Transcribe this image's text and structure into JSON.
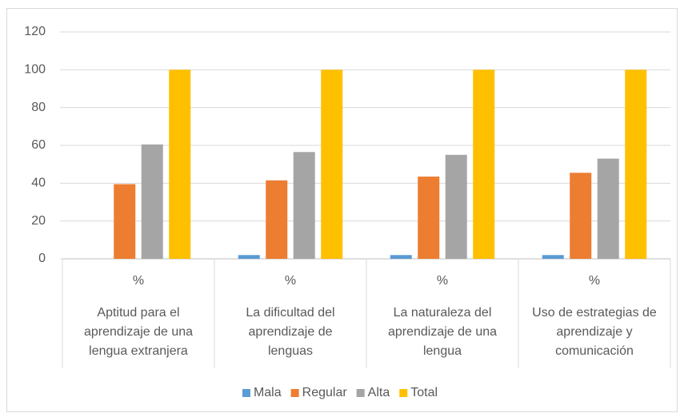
{
  "chart_data": {
    "type": "bar",
    "categories": [
      [
        "Aptitud para el",
        "aprendizaje de una",
        "lengua extranjera"
      ],
      [
        "La dificultad del",
        "aprendizaje de",
        "lenguas"
      ],
      [
        "La naturaleza del",
        "aprendizaje de una",
        "lengua"
      ],
      [
        "Uso de estrategias de",
        "aprendizaje y",
        "comunicación"
      ]
    ],
    "sub_categories": [
      "%",
      "%",
      "%",
      "%"
    ],
    "series": [
      {
        "name": "Mala",
        "color": "#5b9bd5",
        "values": [
          0,
          2,
          2,
          2
        ]
      },
      {
        "name": "Regular",
        "color": "#ed7d31",
        "values": [
          39.5,
          41.5,
          43.5,
          45.5
        ]
      },
      {
        "name": "Alta",
        "color": "#a5a5a5",
        "values": [
          60.5,
          56.5,
          55,
          53
        ]
      },
      {
        "name": "Total",
        "color": "#ffc000",
        "values": [
          100,
          100,
          100,
          100
        ]
      }
    ],
    "ylim": [
      0,
      120
    ],
    "yticks": [
      0,
      20,
      40,
      60,
      80,
      100,
      120
    ],
    "grid": true,
    "legend": "bottom"
  }
}
